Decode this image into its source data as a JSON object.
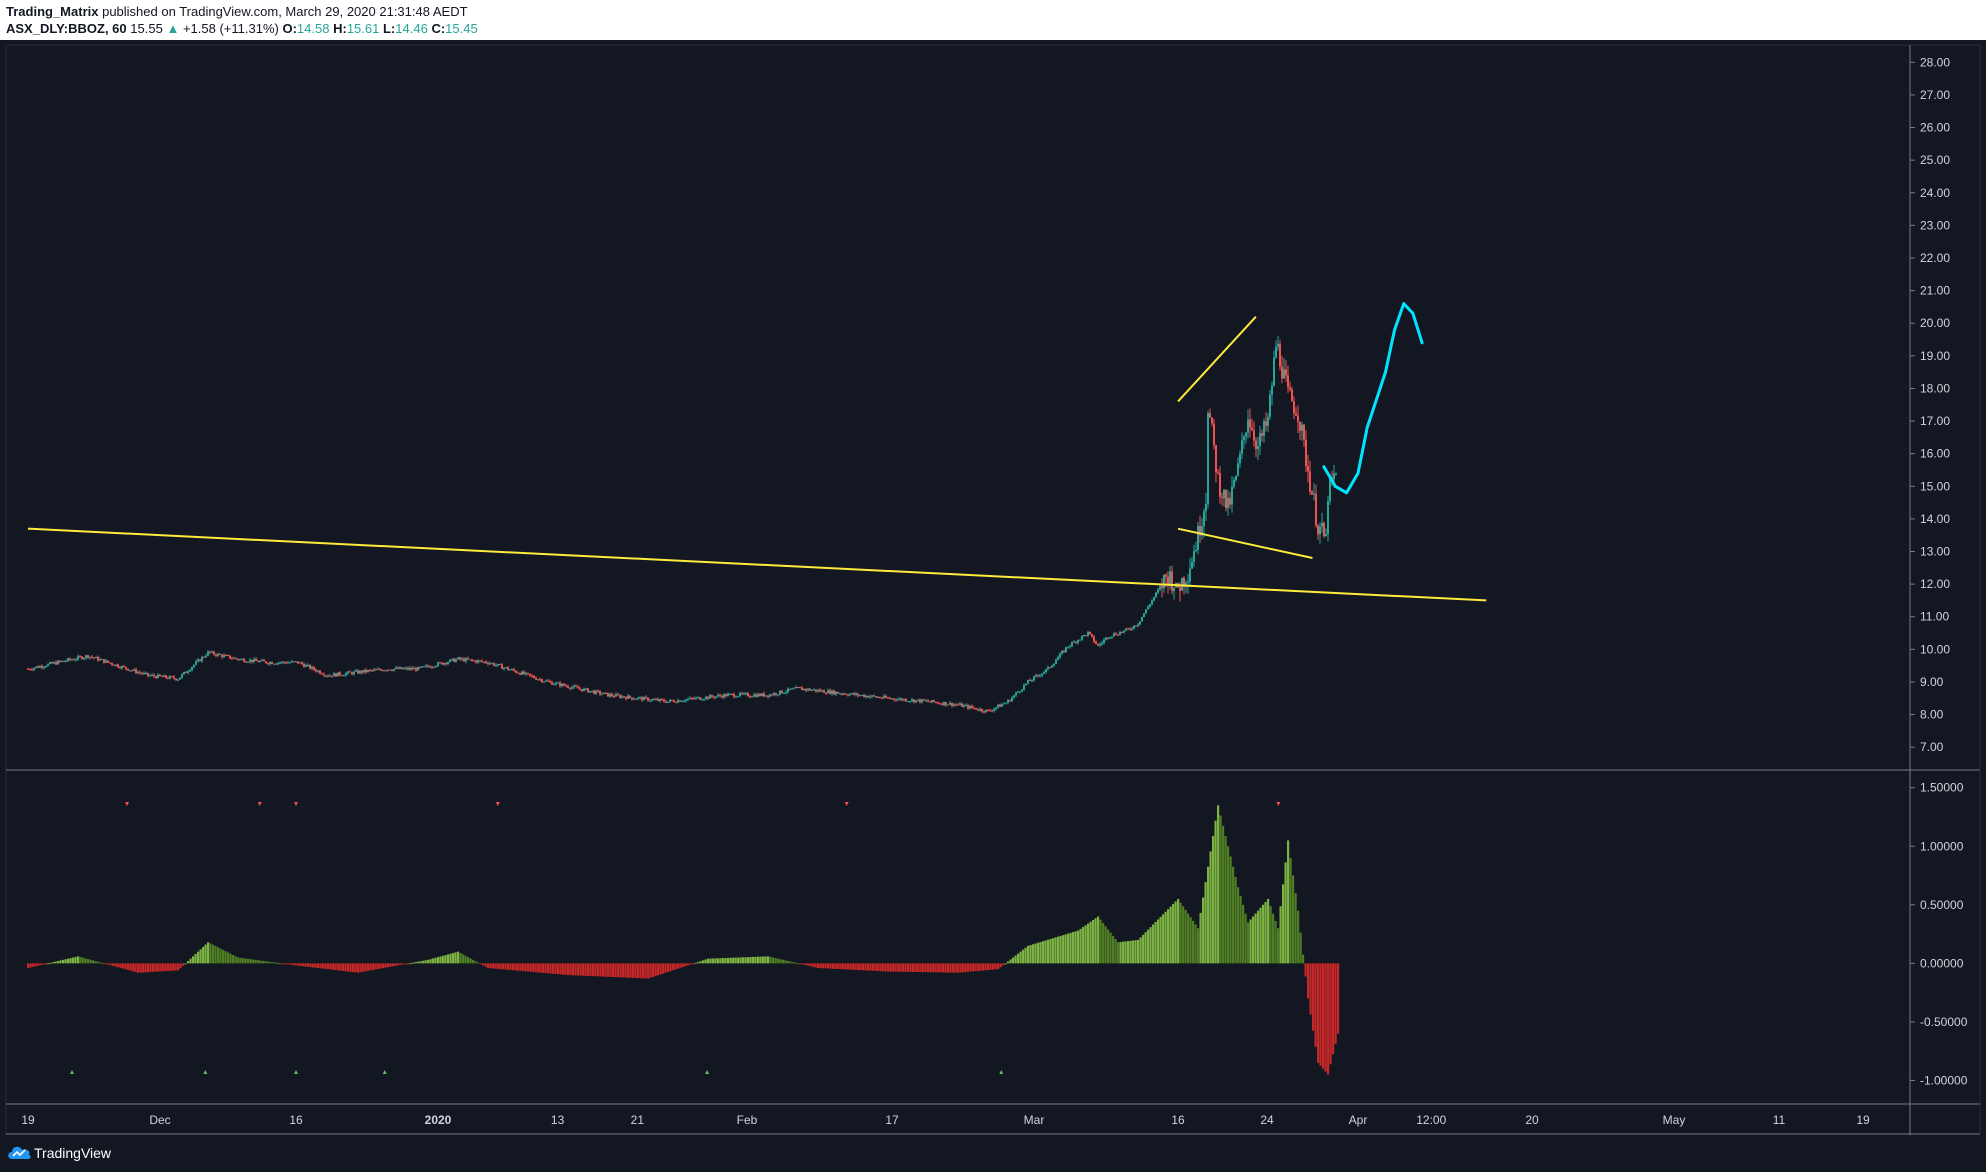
{
  "header": {
    "publisher": "Trading_Matrix",
    "published_text": "published on TradingView.com, March 29, 2020 21:31:48 AEDT",
    "symbol": "ASX_DLY:BBOZ, 60",
    "last_price": "15.55",
    "change": "+1.58 (+11.31%)",
    "o_label": "O:",
    "o_value": "14.58",
    "h_label": "H:",
    "h_value": "15.61",
    "l_label": "L:",
    "l_value": "14.46",
    "c_label": "C:",
    "c_value": "15.45",
    "up_arrow": "▲"
  },
  "footer": {
    "brand": "TradingView",
    "logo_icon": "tradingview-cloud-icon"
  },
  "colors": {
    "background": "#131722",
    "up": "#26a69a",
    "down": "#ef5350",
    "trendline": "#ffeb3b",
    "projection": "#00e5ff",
    "hist_pos": "#7cb342",
    "hist_pos_dark": "#4f7d24",
    "hist_neg": "#c62828",
    "axis_text": "#d1d4dc",
    "separator": "#787b86"
  },
  "chart_data": [
    {
      "type": "candlestick",
      "symbol": "ASX_DLY:BBOZ",
      "interval": "60",
      "x_tick_labels": [
        "19",
        "Dec",
        "16",
        "2020",
        "13",
        "21",
        "Feb",
        "17",
        "Mar",
        "16",
        "24",
        "Apr",
        "12:00",
        "20",
        "May",
        "11",
        "19"
      ],
      "y_axis": {
        "ticks": [
          "28.00",
          "27.00",
          "26.00",
          "25.00",
          "24.00",
          "23.00",
          "22.00",
          "21.00",
          "20.00",
          "19.00",
          "18.00",
          "17.00",
          "16.00",
          "15.00",
          "14.00",
          "13.00",
          "12.00",
          "11.00",
          "10.00",
          "9.00",
          "8.00",
          "7.00"
        ],
        "range": [
          6.3,
          28.5
        ]
      },
      "price_path": [
        [
          "Nov 19",
          9.4
        ],
        [
          "Nov 22",
          9.6
        ],
        [
          "Nov 25",
          9.8
        ],
        [
          "Nov 28",
          9.5
        ],
        [
          "Dec 1",
          9.2
        ],
        [
          "Dec 4",
          9.1
        ],
        [
          "Dec 7",
          9.9
        ],
        [
          "Dec 10",
          9.7
        ],
        [
          "Dec 13",
          9.6
        ],
        [
          "Dec 16",
          9.6
        ],
        [
          "Dec 19",
          9.2
        ],
        [
          "Dec 22",
          9.3
        ],
        [
          "Dec 25",
          9.4
        ],
        [
          "Dec 28",
          9.4
        ],
        [
          "Jan 1",
          9.7
        ],
        [
          "Jan 4",
          9.6
        ],
        [
          "Jan 7",
          9.3
        ],
        [
          "Jan 10",
          9.0
        ],
        [
          "Jan 13",
          8.8
        ],
        [
          "Jan 16",
          8.6
        ],
        [
          "Jan 19",
          8.5
        ],
        [
          "Jan 22",
          8.4
        ],
        [
          "Jan 25",
          8.5
        ],
        [
          "Jan 28",
          8.6
        ],
        [
          "Feb 1",
          8.6
        ],
        [
          "Feb 4",
          8.8
        ],
        [
          "Feb 7",
          8.7
        ],
        [
          "Feb 10",
          8.6
        ],
        [
          "Feb 13",
          8.5
        ],
        [
          "Feb 17",
          8.4
        ],
        [
          "Feb 20",
          8.3
        ],
        [
          "Feb 23",
          8.1
        ],
        [
          "Feb 25",
          8.4
        ],
        [
          "Feb 27",
          9.0
        ],
        [
          "Feb 29",
          9.4
        ],
        [
          "Mar 2",
          10.1
        ],
        [
          "Mar 4",
          10.5
        ],
        [
          "Mar 5",
          10.1
        ],
        [
          "Mar 6",
          10.4
        ],
        [
          "Mar 8",
          10.6
        ],
        [
          "Mar 9",
          10.8
        ],
        [
          "Mar 11",
          11.8
        ],
        [
          "Mar 12",
          12.3
        ],
        [
          "Mar 13",
          11.9
        ],
        [
          "Mar 14",
          12.4
        ],
        [
          "Mar 15",
          13.5
        ],
        [
          "Mar 16",
          15.0
        ],
        [
          "Mar 16",
          17.5
        ],
        [
          "Mar 17",
          15.2
        ],
        [
          "Mar 18",
          14.3
        ],
        [
          "Mar 19",
          15.5
        ],
        [
          "Mar 20",
          17.2
        ],
        [
          "Mar 21",
          16.2
        ],
        [
          "Mar 22",
          17.0
        ],
        [
          "Mar 23",
          19.9
        ],
        [
          "Mar 23",
          19.2
        ],
        [
          "Mar 24",
          17.8
        ],
        [
          "Mar 25",
          17.3
        ],
        [
          "Mar 26",
          15.5
        ],
        [
          "Mar 27",
          13.8
        ],
        [
          "Mar 28",
          13.2
        ],
        [
          "Mar 28",
          14.8
        ],
        [
          "Mar 29",
          15.45
        ]
      ],
      "trendlines": [
        {
          "from": [
            "Nov 19",
            13.7
          ],
          "to": [
            "Apr 15",
            11.5
          ],
          "color": "yellow"
        },
        {
          "from": [
            "Mar 16",
            17.6
          ],
          "to": [
            "Mar 23",
            20.2
          ],
          "color": "yellow"
        },
        {
          "from": [
            "Mar 16",
            13.7
          ],
          "to": [
            "Mar 28",
            12.8
          ],
          "color": "yellow"
        }
      ],
      "projection_path": [
        [
          "Mar 29",
          15.6
        ],
        [
          "Mar 30",
          15.0
        ],
        [
          "Mar 31",
          14.8
        ],
        [
          "Apr 1",
          15.4
        ],
        [
          "Apr 2",
          16.8
        ],
        [
          "Apr 4",
          18.5
        ],
        [
          "Apr 5",
          19.8
        ],
        [
          "Apr 6",
          20.6
        ],
        [
          "Apr 7",
          20.3
        ],
        [
          "Apr 8",
          19.4
        ]
      ]
    },
    {
      "type": "histogram",
      "y_axis": {
        "ticks": [
          "1.50000",
          "1.00000",
          "0.50000",
          "0.00000",
          "-0.50000",
          "-1.00000"
        ],
        "range": [
          -1.15,
          1.6
        ]
      },
      "profile": [
        [
          "Nov 19",
          -0.04
        ],
        [
          "Nov 24",
          0.06
        ],
        [
          "Nov 30",
          -0.08
        ],
        [
          "Dec 4",
          -0.06
        ],
        [
          "Dec 7",
          0.18
        ],
        [
          "Dec 10",
          0.05
        ],
        [
          "Dec 16",
          -0.02
        ],
        [
          "Dec 22",
          -0.08
        ],
        [
          "Dec 29",
          0.03
        ],
        [
          "Jan 1",
          0.1
        ],
        [
          "Jan 4",
          -0.04
        ],
        [
          "Jan 12",
          -0.1
        ],
        [
          "Jan 20",
          -0.13
        ],
        [
          "Jan 26",
          0.04
        ],
        [
          "Feb 1",
          0.06
        ],
        [
          "Feb 6",
          -0.04
        ],
        [
          "Feb 13",
          -0.07
        ],
        [
          "Feb 20",
          -0.08
        ],
        [
          "Feb 24",
          -0.05
        ],
        [
          "Feb 27",
          0.15
        ],
        [
          "Mar 3",
          0.28
        ],
        [
          "Mar 5",
          0.4
        ],
        [
          "Mar 7",
          0.18
        ],
        [
          "Mar 9",
          0.2
        ],
        [
          "Mar 13",
          0.55
        ],
        [
          "Mar 15",
          0.3
        ],
        [
          "Mar 17",
          1.35
        ],
        [
          "Mar 19",
          0.65
        ],
        [
          "Mar 20",
          0.35
        ],
        [
          "Mar 22",
          0.55
        ],
        [
          "Mar 23",
          0.3
        ],
        [
          "Mar 24",
          1.05
        ],
        [
          "Mar 25",
          0.45
        ],
        [
          "Mar 26",
          -0.3
        ],
        [
          "Mar 27",
          -0.85
        ],
        [
          "Mar 28",
          -0.95
        ],
        [
          "Mar 29",
          -0.6
        ]
      ],
      "signal_markers_top": [
        "Nov 28",
        "Dec 12",
        "Dec 16",
        "Jan 7",
        "Feb 12",
        "Mar 25"
      ],
      "signal_markers_bottom": [
        "Nov 23",
        "Dec 6",
        "Dec 16",
        "Dec 26",
        "Jan 28",
        "Feb 27"
      ]
    }
  ]
}
